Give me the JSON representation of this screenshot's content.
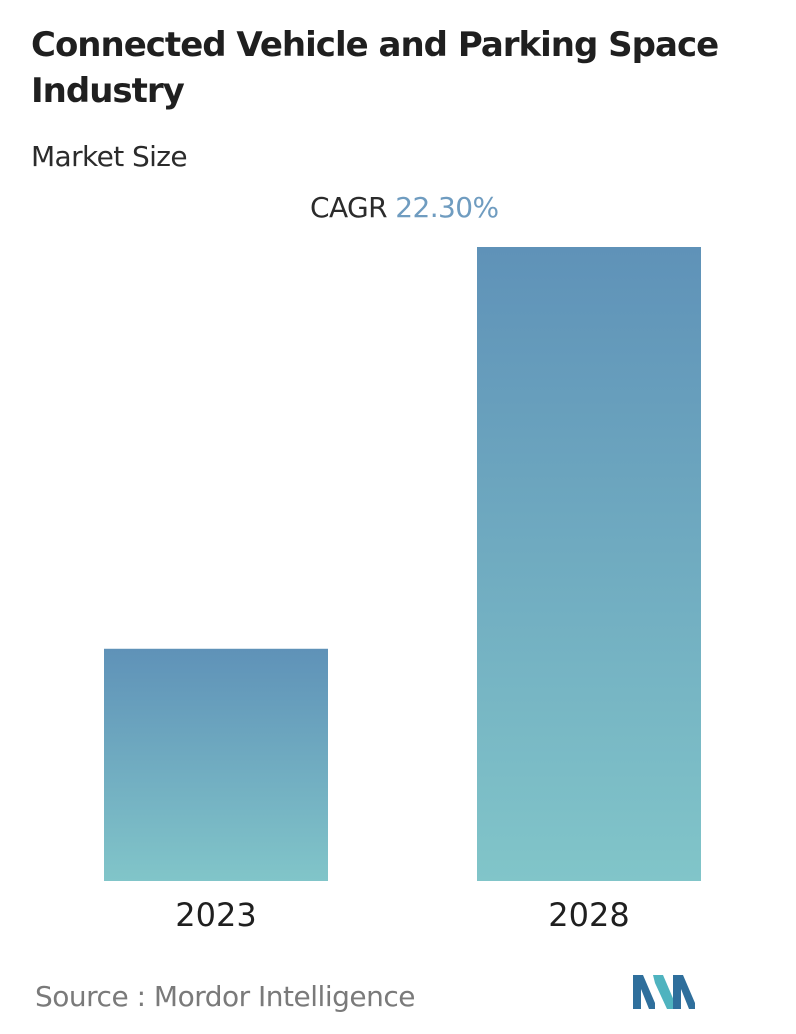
{
  "header": {
    "title": "Connected Vehicle and Parking Space Industry",
    "subtitle": "Market Size"
  },
  "cagr": {
    "label": "CAGR",
    "value": "22.30%"
  },
  "chart_data": {
    "type": "bar",
    "categories": [
      "2023",
      "2028"
    ],
    "values": [
      1.0,
      2.73
    ],
    "ylim": [
      0,
      2.73
    ],
    "grid": false,
    "legend": "none",
    "colors": {
      "bar_top": "#5f92b8",
      "bar_bottom": "#81c5c9"
    }
  },
  "footer": {
    "source_label": "Source :",
    "source_name": "Mordor Intelligence",
    "logo_icon": "mordor-intelligence-logo-icon",
    "logo_colors": [
      "#2f6f9c",
      "#4fb3bf"
    ]
  }
}
